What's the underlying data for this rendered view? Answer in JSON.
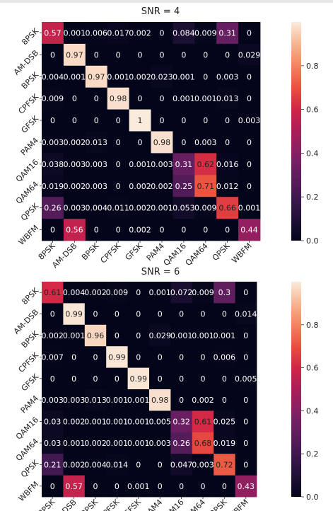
{
  "chart_data": [
    {
      "type": "heatmap",
      "title": "SNR = 4",
      "xlabel": "",
      "ylabel": "",
      "x_tick_labels": [
        "8PSK",
        "AM-DSB",
        "BPSK",
        "CPFSK",
        "GFSK",
        "PAM4",
        "QAM16",
        "QAM64",
        "QPSK",
        "WBFM"
      ],
      "y_tick_labels": [
        "8PSK",
        "AM-DSB",
        "BPSK",
        "CPFSK",
        "GFSK",
        "PAM4",
        "QAM16",
        "QAM64",
        "QPSK",
        "WBFM"
      ],
      "values": [
        [
          0.57,
          0.001,
          0.006,
          0.017,
          0.002,
          0,
          0.084,
          0.009,
          0.31,
          0
        ],
        [
          0,
          0.97,
          0,
          0,
          0,
          0,
          0,
          0,
          0,
          0.029
        ],
        [
          0.004,
          0.001,
          0.97,
          0.001,
          0.002,
          0.023,
          0.001,
          0,
          0.003,
          0
        ],
        [
          0.009,
          0,
          0,
          0.98,
          0,
          0,
          0.001,
          0.001,
          0.013,
          0
        ],
        [
          0,
          0,
          0,
          0,
          1,
          0,
          0,
          0,
          0,
          0.003
        ],
        [
          0.003,
          0.002,
          0.013,
          0,
          0,
          0.98,
          0,
          0.003,
          0,
          0
        ],
        [
          0.038,
          0.003,
          0.003,
          0,
          0.001,
          0.003,
          0.31,
          0.62,
          0.016,
          0
        ],
        [
          0.019,
          0.002,
          0.003,
          0,
          0.002,
          0.002,
          0.25,
          0.71,
          0.012,
          0
        ],
        [
          0.26,
          0.003,
          0.004,
          0.011,
          0.002,
          0.001,
          0.053,
          0.009,
          0.66,
          0.001
        ],
        [
          0,
          0.56,
          0,
          0,
          0.002,
          0,
          0,
          0,
          0,
          0.44
        ]
      ],
      "display_labels": [
        [
          "0.57",
          "0.001",
          "0.006",
          "0.017",
          "0.002",
          "0",
          "0.084",
          "0.009",
          "0.31",
          "0"
        ],
        [
          "0",
          "0.97",
          "0",
          "0",
          "0",
          "0",
          "0",
          "0",
          "0",
          "0.029"
        ],
        [
          "0.004",
          "0.001",
          "0.97",
          "0.001",
          "0.002",
          "0.023",
          "0.001",
          "0",
          "0.003",
          "0"
        ],
        [
          "0.009",
          "0",
          "0",
          "0.98",
          "0",
          "0",
          "0.001",
          "0.001",
          "0.013",
          "0"
        ],
        [
          "0",
          "0",
          "0",
          "0",
          "1",
          "0",
          "0",
          "0",
          "0",
          "0.003"
        ],
        [
          "0.003",
          "0.002",
          "0.013",
          "0",
          "0",
          "0.98",
          "0",
          "0.003",
          "0",
          "0"
        ],
        [
          "0.038",
          "0.003",
          "0.003",
          "0",
          "0.001",
          "0.003",
          "0.31",
          "0.62",
          "0.016",
          "0"
        ],
        [
          "0.019",
          "0.002",
          "0.003",
          "0",
          "0.002",
          "0.002",
          "0.25",
          "0.71",
          "0.012",
          "0"
        ],
        [
          "0.26",
          "0.003",
          "0.004",
          "0.011",
          "0.002",
          "0.001",
          "0.053",
          "0.009",
          "0.66",
          "0.001"
        ],
        [
          "0",
          "0.56",
          "0",
          "0",
          "0.002",
          "0",
          "0",
          "0",
          "0",
          "0.44"
        ]
      ],
      "colorbar": {
        "range": [
          0,
          1
        ],
        "ticks": [
          "0.0",
          "0.2",
          "0.4",
          "0.6",
          "0.8"
        ]
      },
      "colormap": "rocket",
      "grid": false
    },
    {
      "type": "heatmap",
      "title": "SNR = 6",
      "xlabel": "",
      "ylabel": "",
      "x_tick_labels": [
        "8PSK",
        "AM-DSB",
        "BPSK",
        "CPFSK",
        "GFSK",
        "PAM4",
        "QAM16",
        "QAM64",
        "QPSK",
        "WBFM"
      ],
      "y_tick_labels": [
        "8PSK",
        "AM-DSB",
        "BPSK",
        "CPFSK",
        "GFSK",
        "PAM4",
        "QAM16",
        "QAM64",
        "QPSK",
        "WBFM"
      ],
      "values": [
        [
          0.61,
          0.004,
          0.002,
          0.009,
          0,
          0.001,
          0.072,
          0.009,
          0.3,
          0
        ],
        [
          0,
          0.99,
          0,
          0,
          0,
          0,
          0,
          0,
          0,
          0.014
        ],
        [
          0.002,
          0.001,
          0.96,
          0,
          0,
          0.029,
          0.001,
          0.001,
          0.001,
          0
        ],
        [
          0.007,
          0,
          0,
          0.99,
          0,
          0,
          0,
          0,
          0.006,
          0
        ],
        [
          0,
          0,
          0,
          0,
          0.99,
          0,
          0,
          0,
          0,
          0.005
        ],
        [
          0.003,
          0.003,
          0.013,
          0.001,
          0.001,
          0.98,
          0,
          0.002,
          0,
          0
        ],
        [
          0.03,
          0.002,
          0.001,
          0.001,
          0.001,
          0.005,
          0.32,
          0.61,
          0.025,
          0
        ],
        [
          0.03,
          0.001,
          0.002,
          0.001,
          0.001,
          0.003,
          0.26,
          0.68,
          0.019,
          0
        ],
        [
          0.21,
          0.002,
          0.004,
          0.014,
          0,
          0,
          0.047,
          0.003,
          0.72,
          0
        ],
        [
          0,
          0.57,
          0,
          0,
          0.001,
          0,
          0,
          0,
          0,
          0.43
        ]
      ],
      "display_labels": [
        [
          "0.61",
          "0.004",
          "0.002",
          "0.009",
          "0",
          "0.001",
          "0.072",
          "0.009",
          "0.3",
          "0"
        ],
        [
          "0",
          "0.99",
          "0",
          "0",
          "0",
          "0",
          "0",
          "0",
          "0",
          "0.014"
        ],
        [
          "0.002",
          "0.001",
          "0.96",
          "0",
          "0",
          "0.029",
          "0.001",
          "0.001",
          "0.001",
          "0"
        ],
        [
          "0.007",
          "0",
          "0",
          "0.99",
          "0",
          "0",
          "0",
          "0",
          "0.006",
          "0"
        ],
        [
          "0",
          "0",
          "0",
          "0",
          "0.99",
          "0",
          "0",
          "0",
          "0",
          "0.005"
        ],
        [
          "0.003",
          "0.003",
          "0.013",
          "0.001",
          "0.001",
          "0.98",
          "0",
          "0.002",
          "0",
          "0"
        ],
        [
          "0.03",
          "0.002",
          "0.001",
          "0.001",
          "0.001",
          "0.005",
          "0.32",
          "0.61",
          "0.025",
          "0"
        ],
        [
          "0.03",
          "0.001",
          "0.002",
          "0.001",
          "0.001",
          "0.003",
          "0.26",
          "0.68",
          "0.019",
          "0"
        ],
        [
          "0.21",
          "0.002",
          "0.004",
          "0.014",
          "0",
          "0",
          "0.047",
          "0.003",
          "0.72",
          "0"
        ],
        [
          "0",
          "0.57",
          "0",
          "0",
          "0.001",
          "0",
          "0",
          "0",
          "0",
          "0.43"
        ]
      ],
      "colorbar": {
        "range": [
          0,
          1
        ],
        "ticks": [
          "0.0",
          "0.2",
          "0.4",
          "0.6",
          "0.8"
        ]
      },
      "colormap": "rocket",
      "grid": false
    }
  ]
}
